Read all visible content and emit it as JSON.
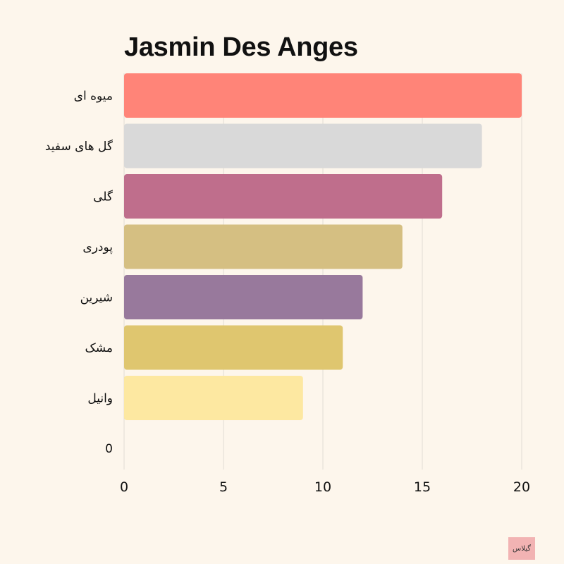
{
  "chart_data": {
    "type": "bar",
    "orientation": "horizontal",
    "title": "Jasmin Des Anges",
    "categories": [
      "میوه ای",
      "گل های سفید",
      "گلی",
      "پودری",
      "شیرین",
      "مشک",
      "وانیل",
      "0"
    ],
    "values": [
      20,
      18,
      16,
      14,
      12,
      11,
      9,
      0
    ],
    "colors": [
      "#ff8478",
      "#d9d9d9",
      "#bf6e8c",
      "#d5bf82",
      "#98799c",
      "#dfc66f",
      "#fde8a1",
      "#cccccc"
    ],
    "x_ticks": [
      "0",
      "5",
      "10",
      "15",
      "20"
    ],
    "xlim": [
      0,
      20
    ],
    "grid": true,
    "legend": "none"
  },
  "watermark": {
    "label": "گیلاس",
    "color": "#f2b3b3"
  }
}
